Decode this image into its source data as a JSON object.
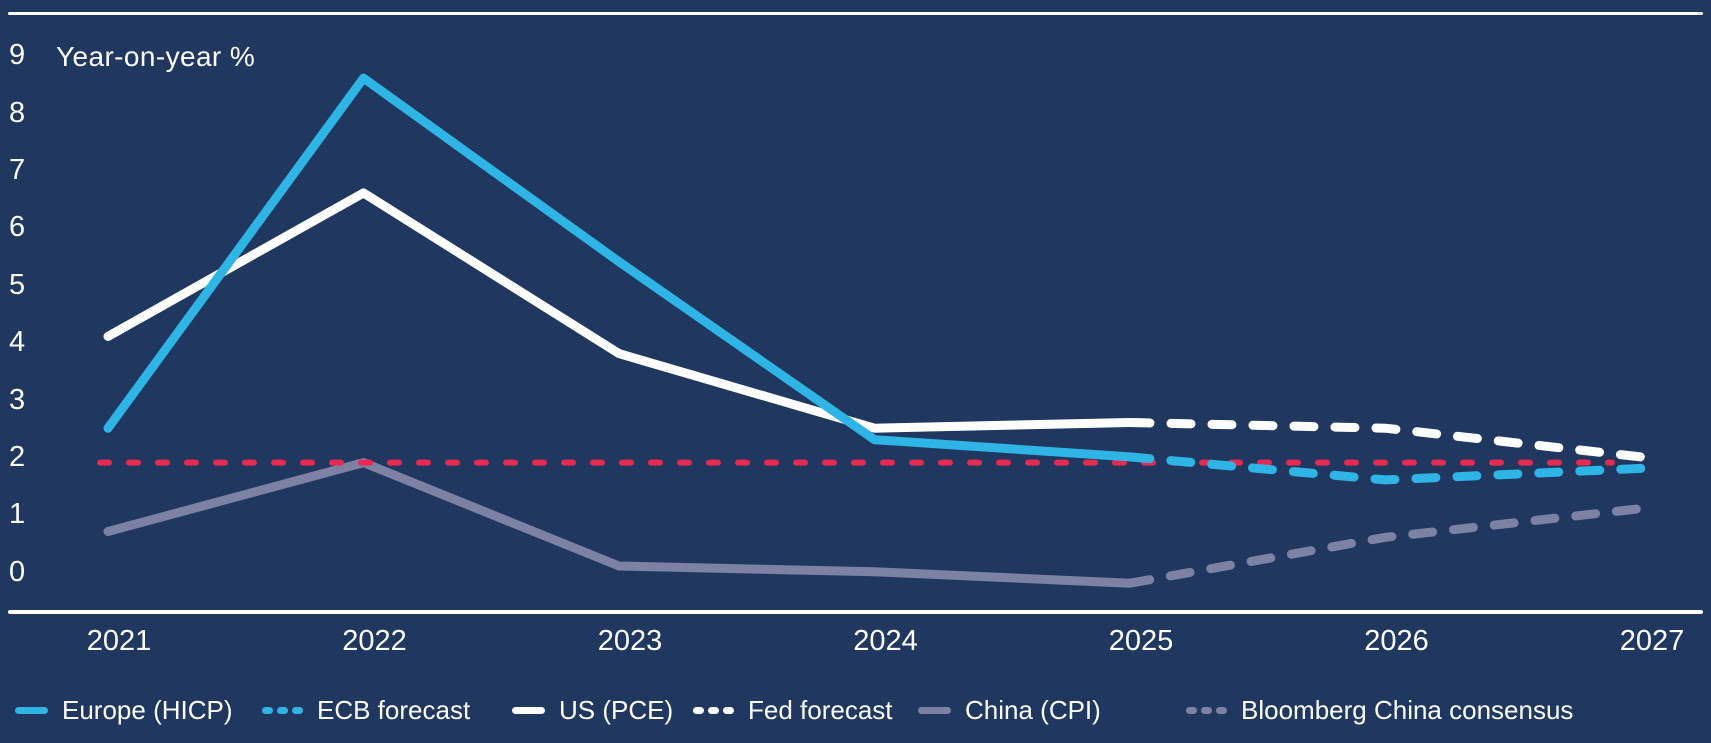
{
  "page": {
    "background_color": "#203760",
    "text_color": "#ffffff"
  },
  "chart_data": {
    "type": "line",
    "unit_label": "Year-on-year %",
    "x": [
      2021,
      2022,
      2023,
      2024,
      2025,
      2026,
      2027
    ],
    "x_tick_labels": [
      "2021",
      "2022",
      "2023",
      "2024",
      "2025",
      "2026",
      "2027"
    ],
    "y_ticks": [
      9,
      8,
      7,
      6,
      5,
      4,
      3,
      2,
      1,
      0
    ],
    "ylim": [
      -0.6,
      9.7
    ],
    "grid": "off",
    "legend_position": "bottom",
    "series": [
      {
        "name": "Europe (HICP)",
        "style": "solid",
        "color": "#2FB4E6",
        "x": [
          2021,
          2022,
          2023,
          2024,
          2025
        ],
        "values": [
          2.5,
          8.6,
          5.4,
          2.3,
          2.0
        ]
      },
      {
        "name": "ECB forecast",
        "style": "dashed",
        "color": "#2FB4E6",
        "x": [
          2025,
          2026,
          2027
        ],
        "values": [
          2.0,
          1.6,
          1.8
        ]
      },
      {
        "name": "US (PCE)",
        "style": "solid",
        "color": "#FFFFFF",
        "x": [
          2021,
          2022,
          2023,
          2024,
          2025
        ],
        "values": [
          4.1,
          6.6,
          3.8,
          2.5,
          2.6
        ]
      },
      {
        "name": "Fed forecast",
        "style": "dashed",
        "color": "#FFFFFF",
        "x": [
          2025,
          2026,
          2027
        ],
        "values": [
          2.6,
          2.5,
          2.0
        ]
      },
      {
        "name": "China (CPI)",
        "style": "solid",
        "color": "#7D81A3",
        "x": [
          2021,
          2022,
          2023,
          2024,
          2025
        ],
        "values": [
          0.7,
          1.9,
          0.1,
          0.0,
          -0.2
        ]
      },
      {
        "name": "Bloomberg China consensus",
        "style": "dashed",
        "color": "#7D81A3",
        "x": [
          2025,
          2026,
          2027
        ],
        "values": [
          -0.2,
          0.6,
          1.1
        ]
      }
    ],
    "target_line": {
      "value": 1.9,
      "color": "#E72A52",
      "style": "dashed"
    }
  }
}
